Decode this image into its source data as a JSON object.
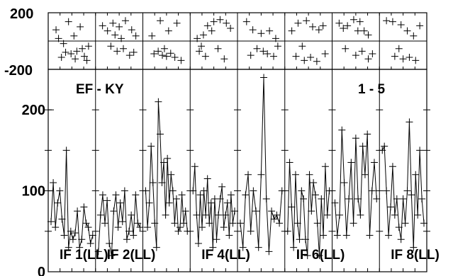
{
  "chart_data": [
    {
      "type": "scatter",
      "panel": "top",
      "ylim": [
        -200,
        200
      ],
      "yticks": [
        "200",
        "-200"
      ],
      "grid": true,
      "cells": 8,
      "points": [
        [
          [
            0.12,
            0.72
          ],
          [
            0.3,
            0.45
          ],
          [
            0.42,
            0.88
          ],
          [
            0.55,
            0.6
          ],
          [
            0.7,
            0.78
          ],
          [
            0.25,
            0.18
          ],
          [
            0.48,
            0.25
          ],
          [
            0.62,
            0.3
          ],
          [
            0.8,
            0.2
          ],
          [
            0.9,
            0.4
          ],
          [
            0.18,
            0.55
          ],
          [
            0.35,
            0.28
          ],
          [
            0.58,
            0.15
          ],
          [
            0.75,
            0.35
          ],
          [
            0.86,
            0.12
          ]
        ],
        [
          [
            0.1,
            0.8
          ],
          [
            0.22,
            0.7
          ],
          [
            0.35,
            0.85
          ],
          [
            0.5,
            0.78
          ],
          [
            0.65,
            0.9
          ],
          [
            0.8,
            0.72
          ],
          [
            0.9,
            0.6
          ],
          [
            0.3,
            0.4
          ],
          [
            0.45,
            0.3
          ],
          [
            0.6,
            0.35
          ],
          [
            0.75,
            0.22
          ],
          [
            0.85,
            0.28
          ],
          [
            0.55,
            0.55
          ],
          [
            0.4,
            0.62
          ]
        ],
        [
          [
            0.15,
            0.6
          ],
          [
            0.35,
            0.9
          ],
          [
            0.55,
            0.7
          ],
          [
            0.75,
            0.85
          ],
          [
            0.2,
            0.25
          ],
          [
            0.4,
            0.22
          ],
          [
            0.5,
            0.2
          ],
          [
            0.6,
            0.26
          ],
          [
            0.7,
            0.18
          ],
          [
            0.85,
            0.12
          ],
          [
            0.3,
            0.3
          ],
          [
            0.45,
            0.35
          ]
        ],
        [
          [
            0.1,
            0.55
          ],
          [
            0.2,
            0.4
          ],
          [
            0.35,
            0.8
          ],
          [
            0.5,
            0.88
          ],
          [
            0.65,
            0.92
          ],
          [
            0.8,
            0.85
          ],
          [
            0.9,
            0.75
          ],
          [
            0.25,
            0.62
          ],
          [
            0.45,
            0.7
          ],
          [
            0.15,
            0.3
          ],
          [
            0.3,
            0.2
          ],
          [
            0.6,
            0.35
          ],
          [
            0.75,
            0.15
          ]
        ],
        [
          [
            0.15,
            0.88
          ],
          [
            0.3,
            0.72
          ],
          [
            0.5,
            0.65
          ],
          [
            0.7,
            0.7
          ],
          [
            0.85,
            0.55
          ],
          [
            0.4,
            0.35
          ],
          [
            0.55,
            0.3
          ],
          [
            0.65,
            0.25
          ],
          [
            0.8,
            0.2
          ],
          [
            0.25,
            0.22
          ],
          [
            0.9,
            0.4
          ]
        ],
        [
          [
            0.1,
            0.7
          ],
          [
            0.25,
            0.85
          ],
          [
            0.45,
            0.9
          ],
          [
            0.6,
            0.78
          ],
          [
            0.75,
            0.72
          ],
          [
            0.85,
            0.8
          ],
          [
            0.2,
            0.2
          ],
          [
            0.4,
            0.12
          ],
          [
            0.55,
            0.18
          ],
          [
            0.7,
            0.1
          ],
          [
            0.9,
            0.25
          ],
          [
            0.35,
            0.4
          ]
        ],
        [
          [
            0.1,
            0.85
          ],
          [
            0.2,
            0.75
          ],
          [
            0.3,
            0.8
          ],
          [
            0.45,
            0.92
          ],
          [
            0.6,
            0.88
          ],
          [
            0.7,
            0.7
          ],
          [
            0.8,
            0.62
          ],
          [
            0.55,
            0.7
          ],
          [
            0.25,
            0.35
          ],
          [
            0.5,
            0.22
          ],
          [
            0.65,
            0.3
          ],
          [
            0.8,
            0.15
          ],
          [
            0.9,
            0.25
          ]
        ],
        [
          [
            0.1,
            0.9
          ],
          [
            0.25,
            0.88
          ],
          [
            0.45,
            0.82
          ],
          [
            0.6,
            0.7
          ],
          [
            0.75,
            0.6
          ],
          [
            0.9,
            0.8
          ],
          [
            0.3,
            0.2
          ],
          [
            0.5,
            0.15
          ],
          [
            0.65,
            0.18
          ],
          [
            0.8,
            0.12
          ],
          [
            0.4,
            0.35
          ]
        ]
      ]
    },
    {
      "type": "line",
      "panel": "bottom",
      "title_left": "EF - KY",
      "title_right": "1 - 5",
      "ylim": [
        0,
        250
      ],
      "yticks": [
        {
          "v": 200,
          "label": "200"
        },
        {
          "v": 100,
          "label": "100"
        },
        {
          "v": 0,
          "label": "0"
        }
      ],
      "cells": 8,
      "panel_labels": [
        "IF 1(LL)",
        "IF 2(LL)",
        "IF 4(LL)",
        "IF 6(LL)",
        "IF 8(LL)"
      ],
      "panel_label_cells": [
        0,
        1,
        3,
        5,
        7
      ],
      "series": [
        {
          "values": [
            62,
            110,
            55,
            85,
            100,
            65,
            45,
            150,
            30,
            50,
            40,
            48,
            75,
            30,
            40,
            80,
            60,
            55,
            35,
            45
          ]
        },
        {
          "values": [
            25,
            70,
            95,
            60,
            88,
            35,
            20,
            75,
            95,
            55,
            85,
            62,
            100,
            40,
            50,
            70,
            45,
            95,
            60,
            55
          ]
        },
        {
          "values": [
            100,
            55,
            85,
            155,
            110,
            60,
            30,
            210,
            170,
            110,
            135,
            70,
            140,
            85,
            120,
            100,
            60,
            90,
            50,
            55,
            95,
            60,
            75,
            50
          ]
        },
        {
          "values": [
            100,
            130,
            70,
            35,
            95,
            55,
            100,
            70,
            115,
            60,
            85,
            30,
            90,
            40,
            70,
            90,
            105,
            55,
            70,
            85,
            45,
            95,
            60,
            75
          ]
        },
        {
          "values": [
            60,
            30,
            95,
            120,
            50,
            100,
            75,
            30,
            120,
            240,
            90,
            25,
            75,
            65,
            70,
            60,
            100
          ]
        },
        {
          "values": [
            50,
            135,
            80,
            30,
            120,
            60,
            40,
            100,
            90,
            40,
            20,
            120,
            75,
            110,
            95,
            60,
            20,
            90,
            45,
            130,
            70,
            100
          ]
        },
        {
          "values": [
            85,
            45,
            70,
            175,
            110,
            45,
            90,
            135,
            60,
            165,
            90,
            70,
            155,
            120,
            170,
            45,
            100,
            135,
            90
          ]
        },
        {
          "values": [
            150,
            155,
            100,
            45,
            80,
            130,
            70,
            90,
            55,
            40,
            90,
            60,
            100,
            185,
            95,
            30,
            120,
            70,
            150,
            90,
            60
          ]
        }
      ]
    }
  ]
}
